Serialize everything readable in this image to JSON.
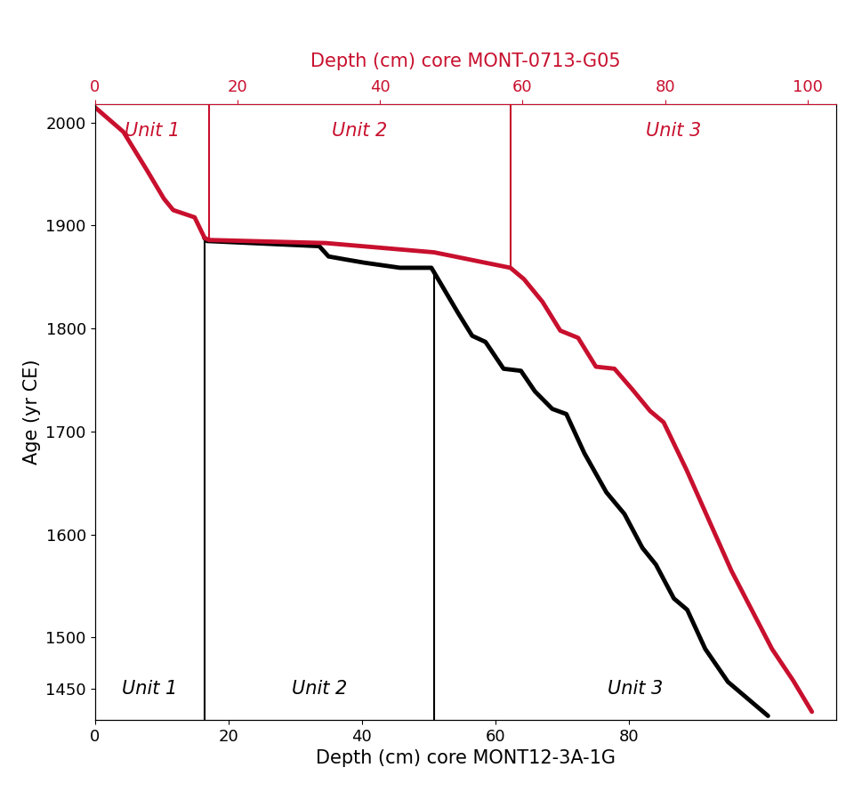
{
  "chart_data": {
    "type": "line",
    "ylabel": "Age (yr CE)",
    "ylim": [
      1420,
      2018
    ],
    "yticks": [
      1450,
      1500,
      1600,
      1700,
      1800,
      1900,
      2000
    ],
    "xlabel": "Depth (cm) core MONT12-3A-1G",
    "xlim": [
      0,
      111
    ],
    "xticks": [
      0,
      20,
      40,
      60,
      80
    ],
    "x2label": "Depth (cm) core MONT-0713-G05",
    "x2lim": [
      0,
      104
    ],
    "x2ticks": [
      0,
      20,
      40,
      60,
      80,
      100
    ],
    "grid": false,
    "series": [
      {
        "color": "#c8102e",
        "axis": "x2",
        "x": [
          0,
          4,
          7.2,
          9.7,
          11,
          14,
          15.4,
          16,
          32.4,
          47.6,
          58.3,
          60.2,
          62.8,
          65.3,
          67.8,
          70.3,
          72.9,
          75.4,
          77.9,
          79.8,
          83,
          89.3,
          95,
          98,
          100.6
        ],
        "values": [
          2015,
          1991,
          1955,
          1926,
          1915,
          1908,
          1888,
          1886,
          1883,
          1874,
          1859,
          1848,
          1826,
          1798,
          1791,
          1763,
          1761,
          1741,
          1720,
          1709,
          1663,
          1565,
          1489,
          1458,
          1428
        ],
        "unit_boundaries": [
          16,
          58.3
        ],
        "unit_labels": [
          "Unit 1",
          "Unit 2",
          "Unit 3"
        ]
      },
      {
        "color": "#000000",
        "axis": "x",
        "x": [
          16.4,
          16.8,
          33.6,
          35,
          37.6,
          40.3,
          45.7,
          50.4,
          52.4,
          54.4,
          56.5,
          58.5,
          61.2,
          63.8,
          65.9,
          68.5,
          70.6,
          73.3,
          76.6,
          79.3,
          82,
          84,
          86.7,
          88.7,
          91.4,
          94.8,
          100.8
        ],
        "values": [
          1888,
          1885,
          1880,
          1870,
          1867,
          1864,
          1859,
          1859,
          1837,
          1815,
          1793,
          1787,
          1761,
          1759,
          1739,
          1722,
          1717,
          1679,
          1641,
          1620,
          1587,
          1571,
          1538,
          1527,
          1489,
          1457,
          1424
        ],
        "unit_boundaries": [
          16.4,
          50.8
        ],
        "unit_labels": [
          "Unit 1",
          "Unit 2",
          "Unit 3"
        ]
      }
    ]
  }
}
